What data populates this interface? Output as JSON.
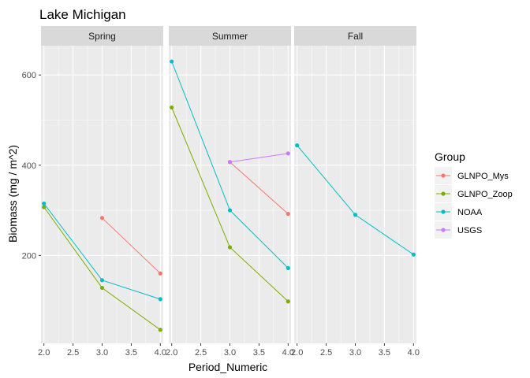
{
  "chart_data": {
    "type": "line",
    "title": "Lake Michigan",
    "xlabel": "Period_Numeric",
    "ylabel": "Biomass (mg / m^2)",
    "facets": [
      "Spring",
      "Summer",
      "Fall"
    ],
    "xlim": [
      1.95,
      4.05
    ],
    "ylim": [
      5,
      665
    ],
    "x_ticks": [
      2.0,
      2.5,
      3.0,
      3.5,
      4.0
    ],
    "x_tick_labels": [
      "2.0",
      "2.5",
      "3.0",
      "3.5",
      "4.0"
    ],
    "y_ticks": [
      200,
      400,
      600
    ],
    "y_tick_labels": [
      "200",
      "400",
      "600"
    ],
    "grid": true,
    "legend": {
      "title": "Group",
      "position": "right",
      "entries": [
        "GLNPO_Mys",
        "GLNPO_Zoop",
        "NOAA",
        "USGS"
      ]
    },
    "colors": {
      "GLNPO_Mys": "#F8766D",
      "GLNPO_Zoop": "#7CAE00",
      "NOAA": "#00BFC4",
      "USGS": "#C77CFF",
      "panel_bg": "#EBEBEB",
      "strip_bg": "#D9D9D9",
      "grid_major": "#FFFFFF"
    },
    "series": [
      {
        "name": "GLNPO_Mys",
        "facet": "Spring",
        "x": [
          3.0,
          4.0
        ],
        "y": [
          283,
          160
        ]
      },
      {
        "name": "GLNPO_Zoop",
        "facet": "Spring",
        "x": [
          2.0,
          3.0,
          4.0
        ],
        "y": [
          307,
          128,
          35
        ]
      },
      {
        "name": "NOAA",
        "facet": "Spring",
        "x": [
          2.0,
          3.0,
          4.0
        ],
        "y": [
          315,
          145,
          103
        ]
      },
      {
        "name": "GLNPO_Mys",
        "facet": "Summer",
        "x": [
          3.0,
          4.0
        ],
        "y": [
          407,
          292
        ]
      },
      {
        "name": "GLNPO_Zoop",
        "facet": "Summer",
        "x": [
          2.0,
          3.0,
          4.0
        ],
        "y": [
          528,
          218,
          98
        ]
      },
      {
        "name": "NOAA",
        "facet": "Summer",
        "x": [
          2.0,
          3.0,
          4.0
        ],
        "y": [
          630,
          300,
          172
        ]
      },
      {
        "name": "USGS",
        "facet": "Summer",
        "x": [
          3.0,
          4.0
        ],
        "y": [
          407,
          426
        ]
      },
      {
        "name": "NOAA",
        "facet": "Fall",
        "x": [
          2.0,
          3.0,
          4.0
        ],
        "y": [
          444,
          290,
          202
        ]
      }
    ]
  }
}
